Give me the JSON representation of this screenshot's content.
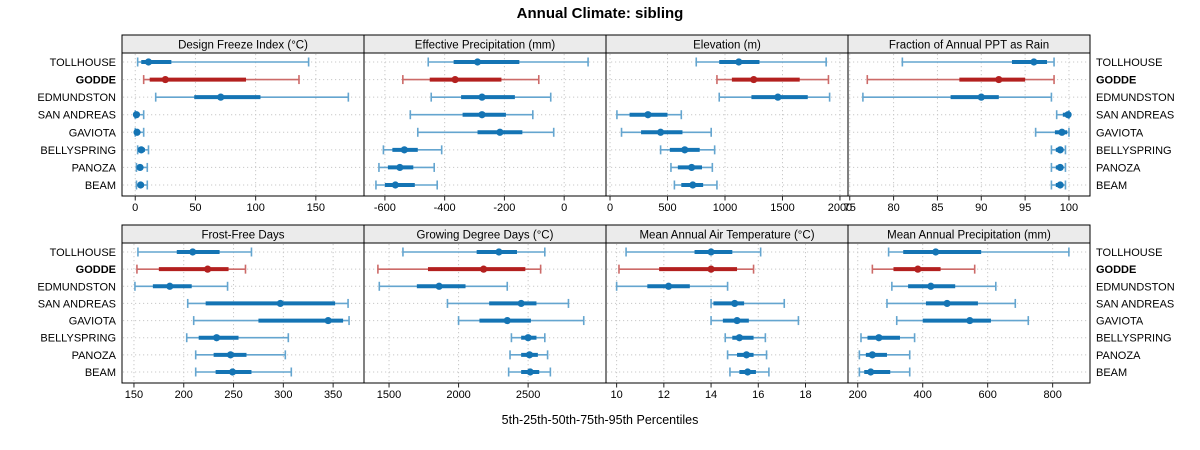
{
  "title": "Annual Climate: sibling",
  "caption": "5th-25th-50th-75th-95th Percentiles",
  "stations": [
    "TOLLHOUSE",
    "GODDE",
    "EDMUNDSTON",
    "SAN ANDREAS",
    "GAVIOTA",
    "BELLYSPRING",
    "PANOZA",
    "BEAM"
  ],
  "highlight_station": "GODDE",
  "percentile_labels": [
    "5th",
    "25th",
    "50th",
    "75th",
    "95th"
  ],
  "colors": {
    "series": "#1474B4",
    "series_light": "#64A5CF",
    "highlight": "#B3201F",
    "highlight_light": "#CC6A68",
    "header_bg": "#EBEBEB",
    "panel_border": "#000000",
    "grid": "#C8C8C8",
    "text": "#000000"
  },
  "chart_data": [
    {
      "type": "percentile-dotplot",
      "title": "Design Freeze Index (°C)",
      "panel_row": 0,
      "panel_col": 0,
      "xlim": [
        -11,
        190
      ],
      "ticks": [
        0,
        50,
        100,
        150
      ],
      "series": [
        {
          "name": "TOLLHOUSE",
          "values": [
            2,
            5,
            11,
            30,
            144
          ]
        },
        {
          "name": "GODDE",
          "values": [
            7,
            12,
            25,
            92,
            136
          ]
        },
        {
          "name": "EDMUNDSTON",
          "values": [
            17,
            49,
            71,
            104,
            177
          ]
        },
        {
          "name": "SAN ANDREAS",
          "values": [
            0,
            0.5,
            1,
            3,
            7
          ]
        },
        {
          "name": "GAVIOTA",
          "values": [
            0,
            0.5,
            1.5,
            3,
            7
          ]
        },
        {
          "name": "BELLYSPRING",
          "values": [
            2,
            3.5,
            5,
            8,
            11
          ]
        },
        {
          "name": "PANOZA",
          "values": [
            1,
            3,
            4,
            6,
            10
          ]
        },
        {
          "name": "BEAM",
          "values": [
            1,
            3,
            4.5,
            7,
            10
          ]
        }
      ]
    },
    {
      "type": "percentile-dotplot",
      "title": "Effective Precipitation (mm)",
      "panel_row": 0,
      "panel_col": 1,
      "xlim": [
        -670,
        140
      ],
      "ticks": [
        -600,
        -400,
        -200,
        0
      ],
      "series": [
        {
          "name": "TOLLHOUSE",
          "values": [
            -455,
            -370,
            -290,
            -150,
            80
          ]
        },
        {
          "name": "GODDE",
          "values": [
            -540,
            -450,
            -365,
            -210,
            -85
          ]
        },
        {
          "name": "EDMUNDSTON",
          "values": [
            -445,
            -345,
            -275,
            -165,
            -45
          ]
        },
        {
          "name": "SAN ANDREAS",
          "values": [
            -515,
            -340,
            -275,
            -195,
            -105
          ]
        },
        {
          "name": "GAVIOTA",
          "values": [
            -490,
            -290,
            -215,
            -140,
            -35
          ]
        },
        {
          "name": "BELLYSPRING",
          "values": [
            -605,
            -575,
            -535,
            -490,
            -410
          ]
        },
        {
          "name": "PANOZA",
          "values": [
            -620,
            -590,
            -550,
            -505,
            -435
          ]
        },
        {
          "name": "BEAM",
          "values": [
            -630,
            -600,
            -565,
            -500,
            -425
          ]
        }
      ]
    },
    {
      "type": "percentile-dotplot",
      "title": "Elevation (m)",
      "panel_row": 0,
      "panel_col": 2,
      "xlim": [
        -35,
        2070
      ],
      "ticks": [
        0,
        500,
        1000,
        1500,
        2000
      ],
      "series": [
        {
          "name": "TOLLHOUSE",
          "values": [
            750,
            950,
            1120,
            1300,
            1880
          ]
        },
        {
          "name": "GODDE",
          "values": [
            930,
            1060,
            1250,
            1650,
            1900
          ]
        },
        {
          "name": "EDMUNDSTON",
          "values": [
            950,
            1230,
            1460,
            1720,
            1910
          ]
        },
        {
          "name": "SAN ANDREAS",
          "values": [
            60,
            170,
            330,
            500,
            620
          ]
        },
        {
          "name": "GAVIOTA",
          "values": [
            100,
            270,
            440,
            630,
            880
          ]
        },
        {
          "name": "BELLYSPRING",
          "values": [
            440,
            520,
            650,
            780,
            910
          ]
        },
        {
          "name": "PANOZA",
          "values": [
            530,
            590,
            710,
            800,
            890
          ]
        },
        {
          "name": "BEAM",
          "values": [
            560,
            620,
            720,
            810,
            930
          ]
        }
      ]
    },
    {
      "type": "percentile-dotplot",
      "title": "Fraction of Annual PPT as Rain",
      "panel_row": 0,
      "panel_col": 3,
      "xlim": [
        74.8,
        102.4
      ],
      "ticks": [
        75,
        80,
        85,
        90,
        95,
        100
      ],
      "series": [
        {
          "name": "TOLLHOUSE",
          "values": [
            81,
            93.5,
            96,
            97.5,
            98.3
          ]
        },
        {
          "name": "GODDE",
          "values": [
            77,
            87.5,
            92,
            95,
            98.3
          ]
        },
        {
          "name": "EDMUNDSTON",
          "values": [
            76.5,
            86.5,
            90,
            92,
            98
          ]
        },
        {
          "name": "SAN ANDREAS",
          "values": [
            98.6,
            99.3,
            99.9,
            100,
            100
          ]
        },
        {
          "name": "GAVIOTA",
          "values": [
            96.2,
            98.4,
            99.2,
            99.8,
            100
          ]
        },
        {
          "name": "BELLYSPRING",
          "values": [
            98,
            98.5,
            99,
            99.3,
            99.6
          ]
        },
        {
          "name": "PANOZA",
          "values": [
            98,
            98.5,
            99,
            99.3,
            99.6
          ]
        },
        {
          "name": "BEAM",
          "values": [
            98,
            98.5,
            99,
            99.3,
            99.6
          ]
        }
      ]
    },
    {
      "type": "percentile-dotplot",
      "title": "Frost-Free Days",
      "panel_row": 1,
      "panel_col": 0,
      "xlim": [
        138,
        381
      ],
      "ticks": [
        150,
        200,
        250,
        300,
        350
      ],
      "series": [
        {
          "name": "TOLLHOUSE",
          "values": [
            154,
            193,
            209,
            236,
            268
          ]
        },
        {
          "name": "GODDE",
          "values": [
            153,
            175,
            224,
            245,
            262
          ]
        },
        {
          "name": "EDMUNDSTON",
          "values": [
            151,
            169,
            186,
            208,
            244
          ]
        },
        {
          "name": "SAN ANDREAS",
          "values": [
            204,
            222,
            297,
            352,
            365
          ]
        },
        {
          "name": "GAVIOTA",
          "values": [
            210,
            275,
            345,
            360,
            366
          ]
        },
        {
          "name": "BELLYSPRING",
          "values": [
            203,
            215,
            233,
            255,
            305
          ]
        },
        {
          "name": "PANOZA",
          "values": [
            212,
            230,
            247,
            263,
            302
          ]
        },
        {
          "name": "BEAM",
          "values": [
            212,
            232,
            249,
            268,
            308
          ]
        }
      ]
    },
    {
      "type": "percentile-dotplot",
      "title": "Growing Degree Days (°C)",
      "panel_row": 1,
      "panel_col": 1,
      "xlim": [
        1320,
        3060
      ],
      "ticks": [
        1500,
        2000,
        2500
      ],
      "series": [
        {
          "name": "TOLLHOUSE",
          "values": [
            1600,
            2130,
            2290,
            2420,
            2620
          ]
        },
        {
          "name": "GODDE",
          "values": [
            1420,
            1780,
            2180,
            2480,
            2590
          ]
        },
        {
          "name": "EDMUNDSTON",
          "values": [
            1430,
            1700,
            1860,
            2050,
            2350
          ]
        },
        {
          "name": "SAN ANDREAS",
          "values": [
            1920,
            2220,
            2450,
            2560,
            2790
          ]
        },
        {
          "name": "GAVIOTA",
          "values": [
            2000,
            2150,
            2350,
            2520,
            2900
          ]
        },
        {
          "name": "BELLYSPRING",
          "values": [
            2380,
            2450,
            2500,
            2560,
            2620
          ]
        },
        {
          "name": "PANOZA",
          "values": [
            2370,
            2450,
            2510,
            2570,
            2640
          ]
        },
        {
          "name": "BEAM",
          "values": [
            2360,
            2450,
            2515,
            2580,
            2660
          ]
        }
      ]
    },
    {
      "type": "percentile-dotplot",
      "title": "Mean Annual Air Temperature (°C)",
      "panel_row": 1,
      "panel_col": 2,
      "xlim": [
        9.55,
        19.8
      ],
      "ticks": [
        10,
        12,
        14,
        16,
        18
      ],
      "series": [
        {
          "name": "TOLLHOUSE",
          "values": [
            10.4,
            13.3,
            14,
            14.9,
            16.1
          ]
        },
        {
          "name": "GODDE",
          "values": [
            10.1,
            11.8,
            14,
            15.1,
            15.8
          ]
        },
        {
          "name": "EDMUNDSTON",
          "values": [
            10,
            11.3,
            12.2,
            13.1,
            14.7
          ]
        },
        {
          "name": "SAN ANDREAS",
          "values": [
            14,
            14.1,
            15,
            15.4,
            17.1
          ]
        },
        {
          "name": "GAVIOTA",
          "values": [
            14,
            14.5,
            15.1,
            15.6,
            17.7
          ]
        },
        {
          "name": "BELLYSPRING",
          "values": [
            14.6,
            14.9,
            15.2,
            15.8,
            16.3
          ]
        },
        {
          "name": "PANOZA",
          "values": [
            14.7,
            15.1,
            15.5,
            15.8,
            16.35
          ]
        },
        {
          "name": "BEAM",
          "values": [
            14.8,
            15.2,
            15.55,
            15.9,
            16.45
          ]
        }
      ]
    },
    {
      "type": "percentile-dotplot",
      "title": "Mean Annual Precipitation (mm)",
      "panel_row": 1,
      "panel_col": 3,
      "xlim": [
        170,
        915
      ],
      "ticks": [
        200,
        400,
        600,
        800
      ],
      "series": [
        {
          "name": "TOLLHOUSE",
          "values": [
            295,
            340,
            440,
            580,
            850
          ]
        },
        {
          "name": "GODDE",
          "values": [
            245,
            310,
            385,
            455,
            560
          ]
        },
        {
          "name": "EDMUNDSTON",
          "values": [
            305,
            355,
            425,
            500,
            625
          ]
        },
        {
          "name": "SAN ANDREAS",
          "values": [
            290,
            410,
            475,
            570,
            685
          ]
        },
        {
          "name": "GAVIOTA",
          "values": [
            320,
            400,
            545,
            610,
            725
          ]
        },
        {
          "name": "BELLYSPRING",
          "values": [
            210,
            230,
            265,
            330,
            375
          ]
        },
        {
          "name": "PANOZA",
          "values": [
            205,
            225,
            245,
            290,
            360
          ]
        },
        {
          "name": "BEAM",
          "values": [
            205,
            220,
            240,
            300,
            360
          ]
        }
      ]
    }
  ]
}
